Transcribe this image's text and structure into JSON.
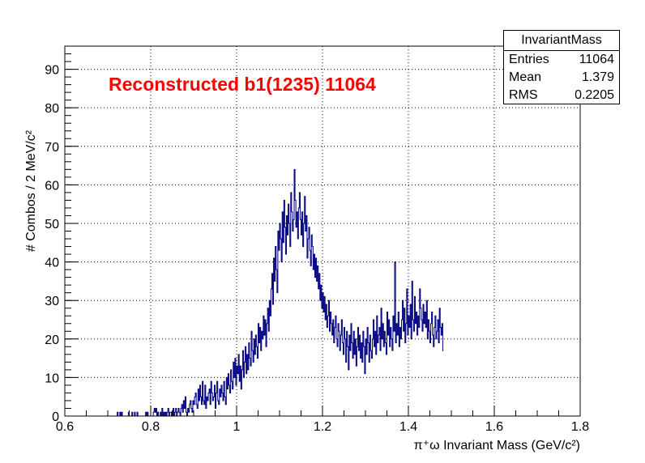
{
  "chart_data": {
    "type": "bar",
    "style": "step-histogram",
    "title": "Reconstructed b1(1235) 11064",
    "title_color": "#ff0000",
    "xlabel": "π⁺ω Invariant Mass (GeV/c²)",
    "ylabel": "# Combos / 2 MeV/c²",
    "xlim": [
      0.6,
      1.8
    ],
    "ylim": [
      0,
      96
    ],
    "grid": true,
    "line_color": "#000080",
    "x_ticks": [
      "0.6",
      "0.8",
      "1",
      "1.2",
      "1.4",
      "1.6",
      "1.8"
    ],
    "y_ticks": [
      "0",
      "10",
      "20",
      "30",
      "40",
      "50",
      "60",
      "70",
      "80",
      "90"
    ],
    "bin_width": 0.002,
    "x_start": 0.6,
    "values": [
      0,
      0,
      0,
      0,
      0,
      0,
      0,
      0,
      0,
      0,
      0,
      0,
      0,
      0,
      0,
      0,
      0,
      0,
      0,
      0,
      0,
      0,
      0,
      0,
      0,
      0,
      0,
      0,
      0,
      0,
      0,
      0,
      0,
      0,
      0,
      0,
      0,
      0,
      0,
      0,
      0,
      0,
      0,
      0,
      0,
      0,
      0,
      0,
      0,
      0,
      0,
      0,
      0,
      0,
      0,
      0,
      0,
      0,
      0,
      0,
      0,
      1,
      0,
      0,
      1,
      0,
      1,
      0,
      0,
      0,
      0,
      0,
      0,
      0,
      1,
      0,
      0,
      0,
      1,
      0,
      0,
      1,
      0,
      0,
      1,
      0,
      0,
      0,
      0,
      0,
      0,
      0,
      0,
      0,
      1,
      0,
      1,
      0,
      0,
      0,
      0,
      0,
      0,
      1,
      2,
      1,
      2,
      0,
      1,
      0,
      0,
      1,
      0,
      2,
      0,
      1,
      0,
      1,
      0,
      1,
      2,
      0,
      1,
      1,
      0,
      0,
      2,
      0,
      1,
      2,
      0,
      1,
      2,
      1,
      0,
      2,
      3,
      1,
      4,
      2,
      5,
      1,
      0,
      2,
      1,
      3,
      4,
      2,
      1,
      4,
      3,
      5,
      6,
      3,
      2,
      7,
      4,
      8,
      5,
      3,
      9,
      4,
      3,
      8,
      2,
      5,
      4,
      6,
      7,
      3,
      9,
      6,
      4,
      5,
      8,
      2,
      6,
      9,
      4,
      3,
      7,
      5,
      8,
      6,
      4,
      9,
      5,
      3,
      10,
      7,
      11,
      8,
      6,
      12,
      9,
      7,
      14,
      10,
      15,
      8,
      13,
      11,
      16,
      9,
      13,
      7,
      12,
      17,
      10,
      14,
      18,
      11,
      16,
      12,
      19,
      15,
      13,
      22,
      17,
      14,
      20,
      16,
      21,
      18,
      15,
      24,
      19,
      23,
      17,
      22,
      20,
      26,
      21,
      25,
      18,
      24,
      28,
      22,
      30,
      26,
      33,
      37,
      29,
      41,
      35,
      44,
      38,
      32,
      48,
      43,
      50,
      46,
      40,
      53,
      45,
      56,
      49,
      42,
      52,
      47,
      55,
      50,
      44,
      58,
      53,
      48,
      51,
      64,
      56,
      49,
      53,
      46,
      54,
      58,
      51,
      47,
      53,
      44,
      50,
      57,
      48,
      52,
      41,
      46,
      49,
      43,
      39,
      47,
      44,
      38,
      42,
      36,
      41,
      35,
      39,
      33,
      37,
      30,
      34,
      28,
      32,
      27,
      31,
      25,
      29,
      23,
      26,
      30,
      22,
      27,
      24,
      21,
      25,
      19,
      23,
      26,
      20,
      18,
      24,
      22,
      17,
      21,
      25,
      19,
      16,
      23,
      20,
      14,
      22,
      18,
      12,
      21,
      17,
      24,
      19,
      15,
      22,
      16,
      20,
      13,
      18,
      23,
      17,
      21,
      15,
      19,
      14,
      22,
      18,
      11,
      20,
      16,
      23,
      19,
      14,
      21,
      17,
      15,
      20,
      25,
      18,
      22,
      16,
      26,
      19,
      21,
      23,
      17,
      28,
      20,
      24,
      18,
      22,
      19,
      16,
      27,
      21,
      25,
      18,
      23,
      20,
      17,
      26,
      22,
      40,
      19,
      24,
      21,
      27,
      18,
      23,
      20,
      25,
      30,
      22,
      28,
      19,
      24,
      33,
      21,
      26,
      23,
      29,
      20,
      35,
      25,
      22,
      31,
      24,
      27,
      21,
      26,
      23,
      33,
      28,
      25,
      22,
      29,
      24,
      27,
      23,
      30,
      20,
      25,
      22,
      19,
      24,
      27,
      21,
      18,
      23,
      26,
      20,
      22,
      25,
      19,
      28,
      23,
      21,
      24,
      17
    ]
  },
  "stats": {
    "name": "InvariantMass",
    "rows": [
      {
        "label": "Entries",
        "value": "11064"
      },
      {
        "label": "Mean",
        "value": "1.379"
      },
      {
        "label": "RMS",
        "value": "0.2205"
      }
    ]
  }
}
